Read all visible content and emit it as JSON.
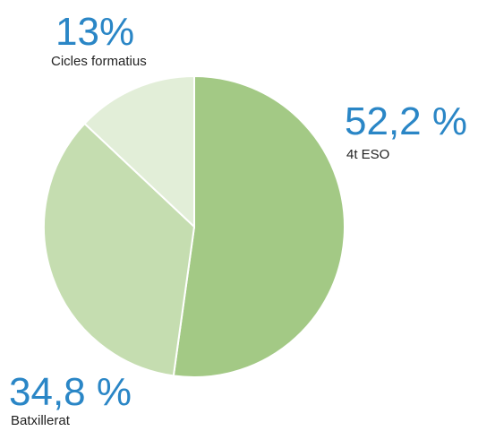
{
  "chart_data": {
    "type": "pie",
    "categories": [
      "4t ESO",
      "Batxillerat",
      "Cicles formatius"
    ],
    "values": [
      52.2,
      34.8,
      13
    ],
    "value_labels": [
      "52,2 %",
      "34,8 %",
      "13%"
    ],
    "colors": [
      "#a3c985",
      "#c5ddb0",
      "#e2eed8"
    ]
  }
}
